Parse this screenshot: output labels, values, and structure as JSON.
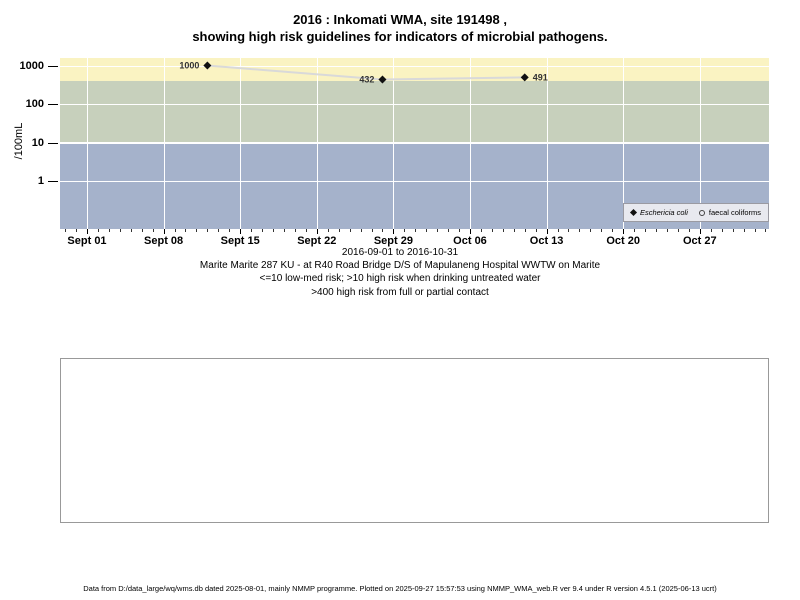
{
  "page": {
    "footer": "Data from D:/data_large/wq/wms.db dated 2025-08-01, mainly NMMP programme. Plotted on 2025-09-27 15:57:53 using NMMP_WMA_web.R ver 9.4 under R version 4.5.1 (2025-06-13 ucrt)"
  },
  "chart_data": {
    "type": "line",
    "title_lines": [
      "2016 : Inkomati WMA, site 191498 ,",
      "showing high risk guidelines for indicators of microbial pathogens."
    ],
    "ylabel": "/100mL",
    "y_scale": "log10",
    "ylim": [
      0.06,
      1500
    ],
    "grid": true,
    "y_ticks": [
      {
        "label": "1000",
        "value": 1000
      },
      {
        "label": "100",
        "value": 100
      },
      {
        "label": "10",
        "value": 10
      },
      {
        "label": "1",
        "value": 1
      }
    ],
    "x_ticks": [
      {
        "label": "Sept 01",
        "day": 0
      },
      {
        "label": "Sept 08",
        "day": 7
      },
      {
        "label": "Sept 15",
        "day": 14
      },
      {
        "label": "Sept 22",
        "day": 21
      },
      {
        "label": "Sept 29",
        "day": 28
      },
      {
        "label": "Oct 06",
        "day": 35
      },
      {
        "label": "Oct 13",
        "day": 42
      },
      {
        "label": "Oct 20",
        "day": 49
      },
      {
        "label": "Oct 27",
        "day": 56
      }
    ],
    "x_minor_tick_days": {
      "from": -2,
      "to": 62
    },
    "series": [
      {
        "name": "Eschericia coli",
        "marker": "filled-diamond",
        "line_color": "#D9D9D9",
        "points": [
          {
            "date": "2016-09-12",
            "day": 11,
            "value": 1000,
            "label": "1000",
            "label_side": "left"
          },
          {
            "date": "2016-09-28",
            "day": 27,
            "value": 432,
            "label": "432",
            "label_side": "left"
          },
          {
            "date": "2016-10-11",
            "day": 40,
            "value": 491,
            "label": "491",
            "label_side": "right"
          }
        ]
      },
      {
        "name": "faecal coliforms",
        "marker": "open-circle",
        "points": []
      }
    ],
    "bands": [
      {
        "id": "high-risk",
        "color": "#FAF3C2",
        "from": 400,
        "to": null
      },
      {
        "id": "medium-risk",
        "color": "#C7D0BC",
        "from": 10,
        "to": 400
      },
      {
        "id": "low-med-risk",
        "color": "#A5B2CB",
        "from": null,
        "to": 10
      }
    ],
    "legend": {
      "position": "bottom-right"
    },
    "subtitle_lines": [
      "2016-09-01 to 2016-10-31",
      "Marite Marite 287 KU - at R40 Road Bridge D/S of Mapulaneng Hospital WWTW on Marite",
      "<=10 low-med risk; >10 high risk when drinking untreated water",
      ">400 high risk from full or partial contact"
    ]
  }
}
